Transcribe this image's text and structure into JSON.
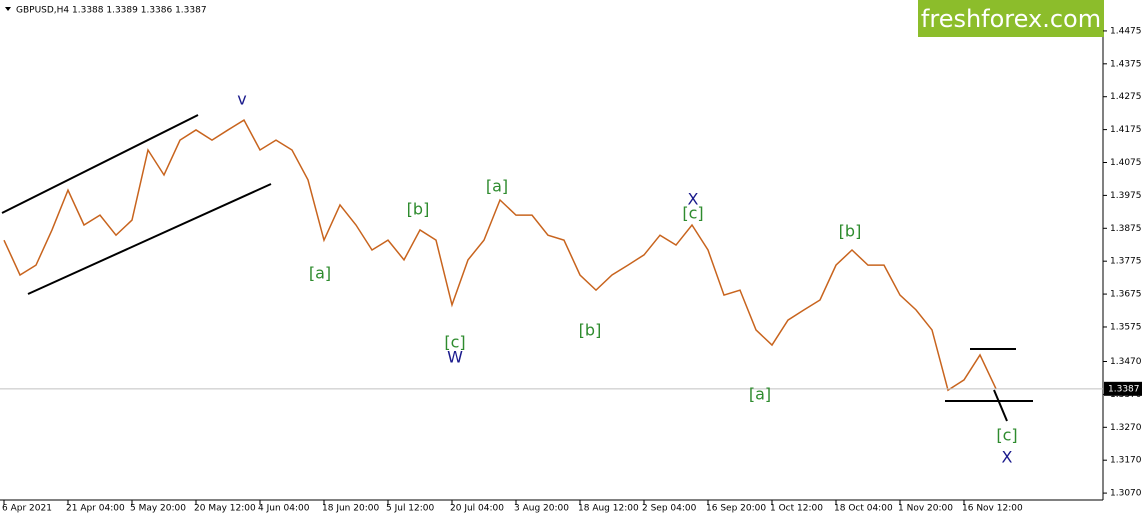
{
  "chart_data": {
    "type": "line",
    "title": "GBPUSD,H4  1.3388 1.3389 1.3386 1.3387",
    "logo": "freshforex.com",
    "categories": [
      "6 Apr 2021",
      null,
      null,
      null,
      "21 Apr 04:00",
      null,
      null,
      null,
      "5 May 20:00",
      null,
      null,
      null,
      "20 May 12:00",
      null,
      null,
      null,
      "4 Jun 04:00",
      null,
      null,
      null,
      "18 Jun 20:00",
      null,
      null,
      null,
      "5 Jul 12:00",
      null,
      null,
      null,
      "20 Jul 04:00",
      null,
      null,
      null,
      "3 Aug 20:00",
      null,
      null,
      null,
      "18 Aug 12:00",
      null,
      null,
      null,
      "2 Sep 04:00",
      null,
      null,
      null,
      "16 Sep 20:00",
      null,
      null,
      null,
      "1 Oct 12:00",
      null,
      null,
      null,
      "18 Oct 04:00",
      null,
      null,
      null,
      "1 Nov 20:00",
      null,
      null,
      null,
      "16 Nov 12:00",
      null,
      null
    ],
    "series": [
      {
        "name": "GBPUSD",
        "color": "#c8641e",
        "values": [
          1.3839,
          1.3733,
          1.3763,
          1.387,
          1.3991,
          1.3885,
          1.3915,
          1.3854,
          1.39,
          1.4113,
          1.4037,
          1.4143,
          1.4174,
          1.4143,
          1.4174,
          1.4204,
          1.4113,
          1.4143,
          1.4113,
          1.4022,
          1.3839,
          1.3946,
          1.3885,
          1.3809,
          1.3839,
          1.3779,
          1.387,
          1.3839,
          1.3642,
          1.3779,
          1.3839,
          1.3961,
          1.3915,
          1.3915,
          1.3854,
          1.3839,
          1.3733,
          1.3687,
          1.3733,
          1.3763,
          1.3794,
          1.3854,
          1.3824,
          1.3885,
          1.3809,
          1.3672,
          1.3687,
          1.3566,
          1.352,
          1.3596,
          1.3627,
          1.3657,
          1.3763,
          1.3809,
          1.3763,
          1.3763,
          1.3672,
          1.3627,
          1.3566,
          1.3383,
          1.3414,
          1.349,
          1.3387
        ]
      }
    ],
    "current_price": 1.3387,
    "ylim": [
      1.3049,
      1.4569
    ],
    "yticks": [
      1.4475,
      1.4375,
      1.4275,
      1.4175,
      1.4075,
      1.3975,
      1.3875,
      1.3775,
      1.3675,
      1.3575,
      {
        "value": 1.347,
        "label": "1.3470"
      },
      {
        "value": 1.337,
        "label": "1.3370"
      },
      {
        "value": 1.327,
        "label": "1.3270"
      },
      {
        "value": 1.317,
        "label": "1.3170"
      },
      {
        "value": 1.307,
        "label": "1.3070"
      }
    ],
    "annotations": [
      {
        "text": "v",
        "color": "#1a1a8c"
      },
      {
        "text": "[a]",
        "color": "#2e8b2e"
      },
      {
        "text": "[b]",
        "color": "#2e8b2e"
      },
      {
        "text": "[c]",
        "color": "#2e8b2e"
      },
      {
        "text": "W",
        "color": "#1a1a8c"
      },
      {
        "text": "[a]",
        "color": "#2e8b2e"
      },
      {
        "text": "X",
        "color": "#1a1a8c"
      },
      {
        "text": "[c]",
        "color": "#2e8b2e"
      },
      {
        "text": "[b]",
        "color": "#2e8b2e"
      },
      {
        "text": "[a]",
        "color": "#2e8b2e"
      },
      {
        "text": "[b]",
        "color": "#2e8b2e"
      },
      {
        "text": "[c]",
        "color": "#2e8b2e"
      },
      {
        "text": "X",
        "color": "#1a1a8c"
      }
    ]
  }
}
